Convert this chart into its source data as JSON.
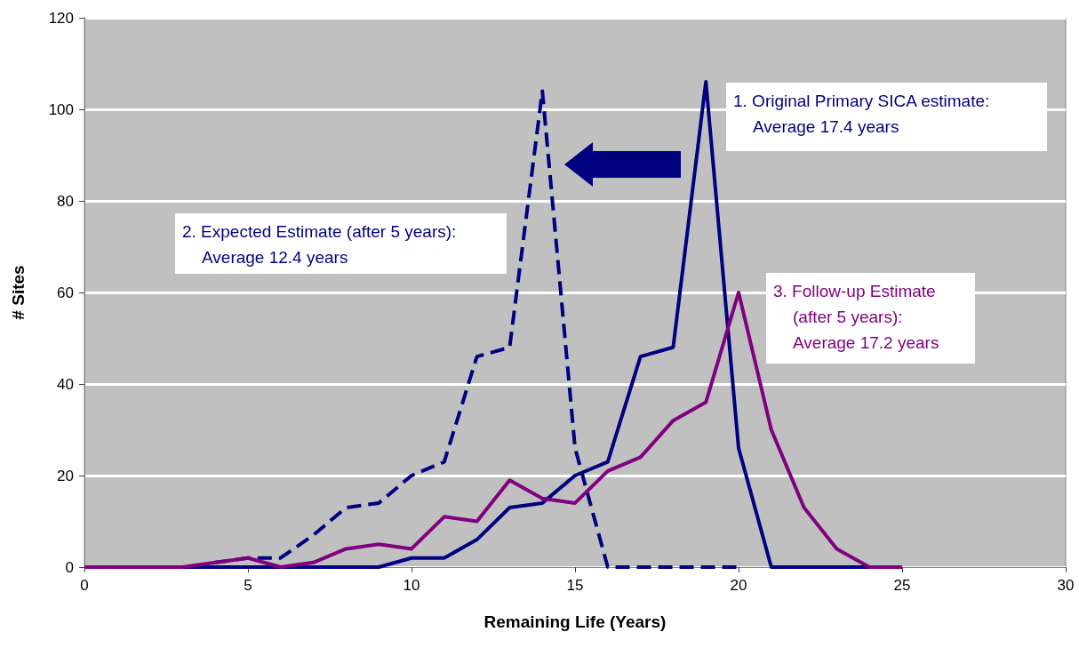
{
  "chart_data": {
    "type": "line",
    "xlabel": "Remaining Life (Years)",
    "ylabel": "# Sites",
    "xlim": [
      0,
      30
    ],
    "xticks": [
      0,
      5,
      10,
      15,
      20,
      25,
      30
    ],
    "ylim": [
      0,
      120
    ],
    "yticks": [
      0,
      20,
      40,
      60,
      80,
      100,
      120
    ],
    "grid": "y",
    "marker": "none",
    "line_style": "solid",
    "x": [
      0,
      1,
      2,
      3,
      4,
      5,
      6,
      7,
      8,
      9,
      10,
      11,
      12,
      13,
      14,
      15,
      16,
      17,
      18,
      19,
      20,
      21,
      22,
      23,
      24,
      25
    ],
    "series": [
      {
        "color": "#000080",
        "values": [
          null,
          null,
          null,
          0,
          0,
          0,
          0,
          0,
          0,
          0,
          2,
          2,
          6,
          13,
          14,
          20,
          23,
          46,
          48,
          106,
          26,
          0,
          0,
          0,
          0,
          null
        ]
      },
      {
        "color": "#000080",
        "line_style": "dashed",
        "values": [
          null,
          null,
          null,
          null,
          1,
          2,
          2,
          7,
          13,
          14,
          20,
          23,
          46,
          48,
          104,
          26,
          0,
          0,
          0,
          0,
          0,
          null,
          null,
          null,
          null,
          null
        ]
      },
      {
        "color": "#800080",
        "values": [
          0,
          0,
          0,
          0,
          1,
          2,
          0,
          1,
          4,
          5,
          4,
          11,
          10,
          19,
          15,
          14,
          21,
          24,
          32,
          36,
          60,
          30,
          13,
          4,
          0,
          0
        ]
      }
    ],
    "annotations": [
      "1. Original Primary SICA estimate:\nAverage 17.4 years",
      "2. Expected Estimate (after 5 years):\nAverage 12.4 years",
      "3. Follow-up Estimate\n(after 5 years):\nAverage 17.2 years"
    ]
  }
}
